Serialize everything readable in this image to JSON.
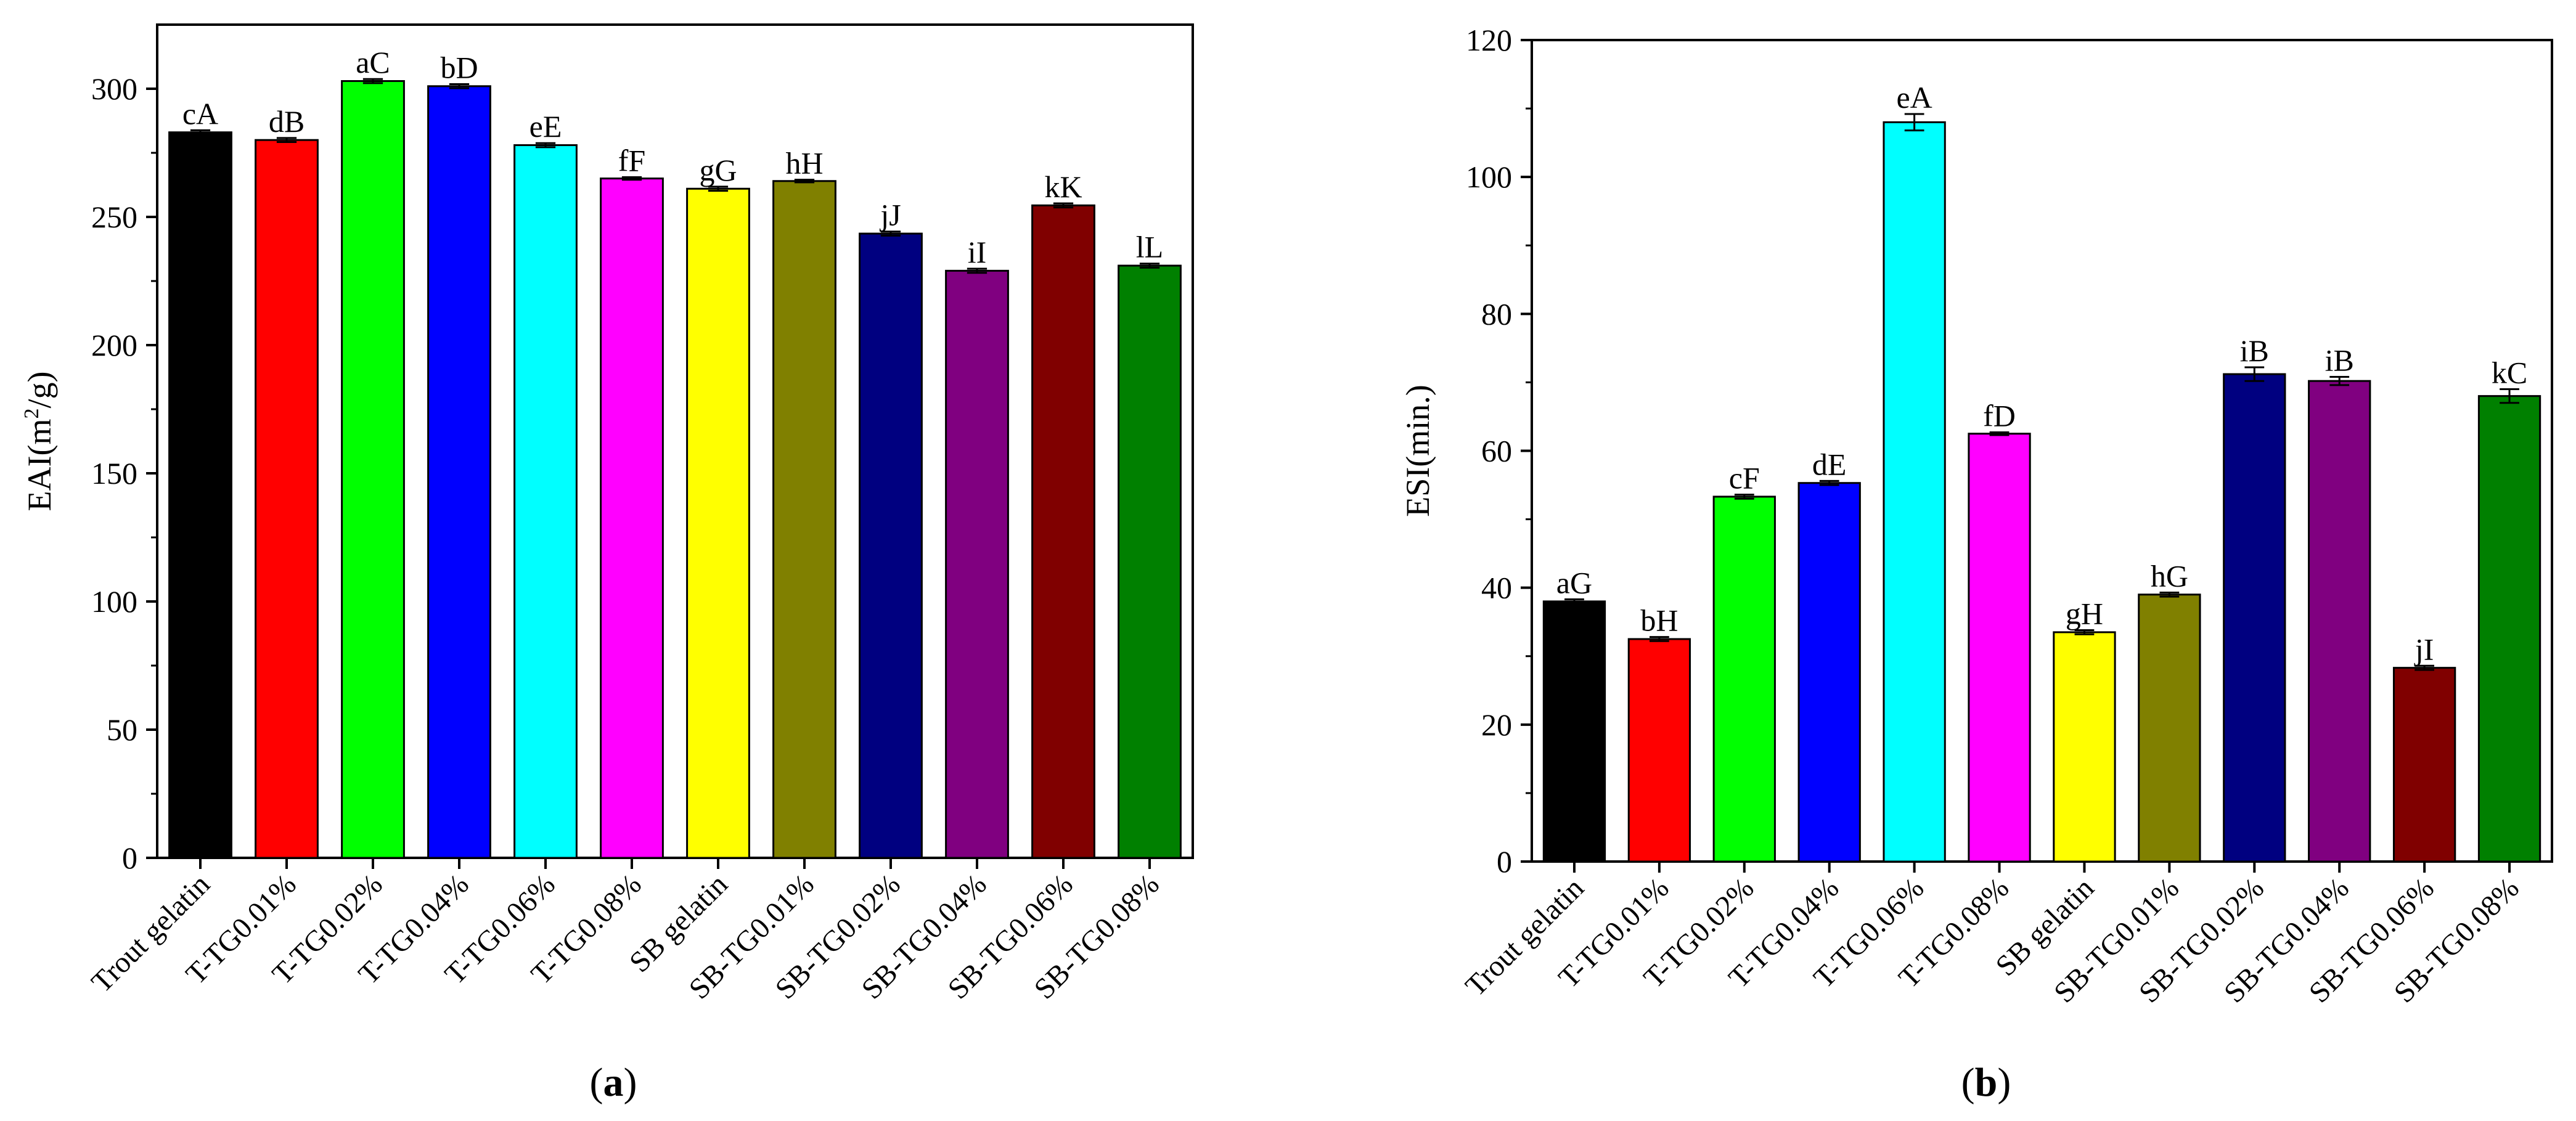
{
  "chart_data": [
    {
      "type": "bar",
      "panel": "(a)",
      "panel_letter": "a",
      "ylabel": "EAI(m²/g)",
      "ylabel_parts": {
        "pre": "EAI(m",
        "sup": "2",
        "post": "/g)"
      },
      "xlabel": "",
      "ylim": [
        0,
        325
      ],
      "yticks": [
        0,
        50,
        100,
        150,
        200,
        250,
        300
      ],
      "categories": [
        "Trout gelatin",
        "T-TG0.01%",
        "T-TG0.02%",
        "T-TG0.04%",
        "T-TG0.06%",
        "T-TG0.08%",
        "SB gelatin",
        "SB-TG0.01%",
        "SB-TG0.02%",
        "SB-TG0.04%",
        "SB-TG0.06%",
        "SB-TG0.08%"
      ],
      "values": [
        283,
        280,
        303,
        301,
        278,
        265,
        261,
        264,
        243.5,
        229,
        254.5,
        231
      ],
      "errors": [
        0.8,
        0.8,
        0.8,
        0.8,
        0.8,
        0.5,
        0.8,
        0.5,
        0.8,
        0.8,
        0.8,
        0.8
      ],
      "labels": [
        "cA",
        "dB",
        "aC",
        "bD",
        "eE",
        "fF",
        "gG",
        "hH",
        "jJ",
        "iI",
        "kK",
        "lL"
      ],
      "colors": [
        "#000000",
        "#ff0000",
        "#00ff00",
        "#0000ff",
        "#00ffff",
        "#ff00ff",
        "#ffff00",
        "#808000",
        "#000080",
        "#800080",
        "#800000",
        "#008000"
      ]
    },
    {
      "type": "bar",
      "panel": "(b)",
      "panel_letter": "b",
      "ylabel": "ESI(min.)",
      "xlabel": "",
      "ylim": [
        0,
        120
      ],
      "yticks": [
        0,
        20,
        40,
        60,
        80,
        100,
        120
      ],
      "categories": [
        "Trout gelatin",
        "T-TG0.01%",
        "T-TG0.02%",
        "T-TG0.04%",
        "T-TG0.06%",
        "T-TG0.08%",
        "SB gelatin",
        "SB-TG0.01%",
        "SB-TG0.02%",
        "SB-TG0.04%",
        "SB-TG0.06%",
        "SB-TG0.08%"
      ],
      "values": [
        38,
        32.5,
        53.3,
        55.3,
        108,
        62.5,
        33.5,
        39,
        71.2,
        70.2,
        28.3,
        68
      ],
      "errors": [
        0.3,
        0.3,
        0.3,
        0.3,
        1.2,
        0.2,
        0.3,
        0.3,
        1.0,
        0.6,
        0.3,
        1.0
      ],
      "labels": [
        "aG",
        "bH",
        "cF",
        "dE",
        "eA",
        "fD",
        "gH",
        "hG",
        "iB",
        "iB",
        "jI",
        "kC"
      ],
      "colors": [
        "#000000",
        "#ff0000",
        "#00ff00",
        "#0000ff",
        "#00ffff",
        "#ff00ff",
        "#ffff00",
        "#808000",
        "#000080",
        "#800080",
        "#800000",
        "#008000"
      ]
    }
  ]
}
